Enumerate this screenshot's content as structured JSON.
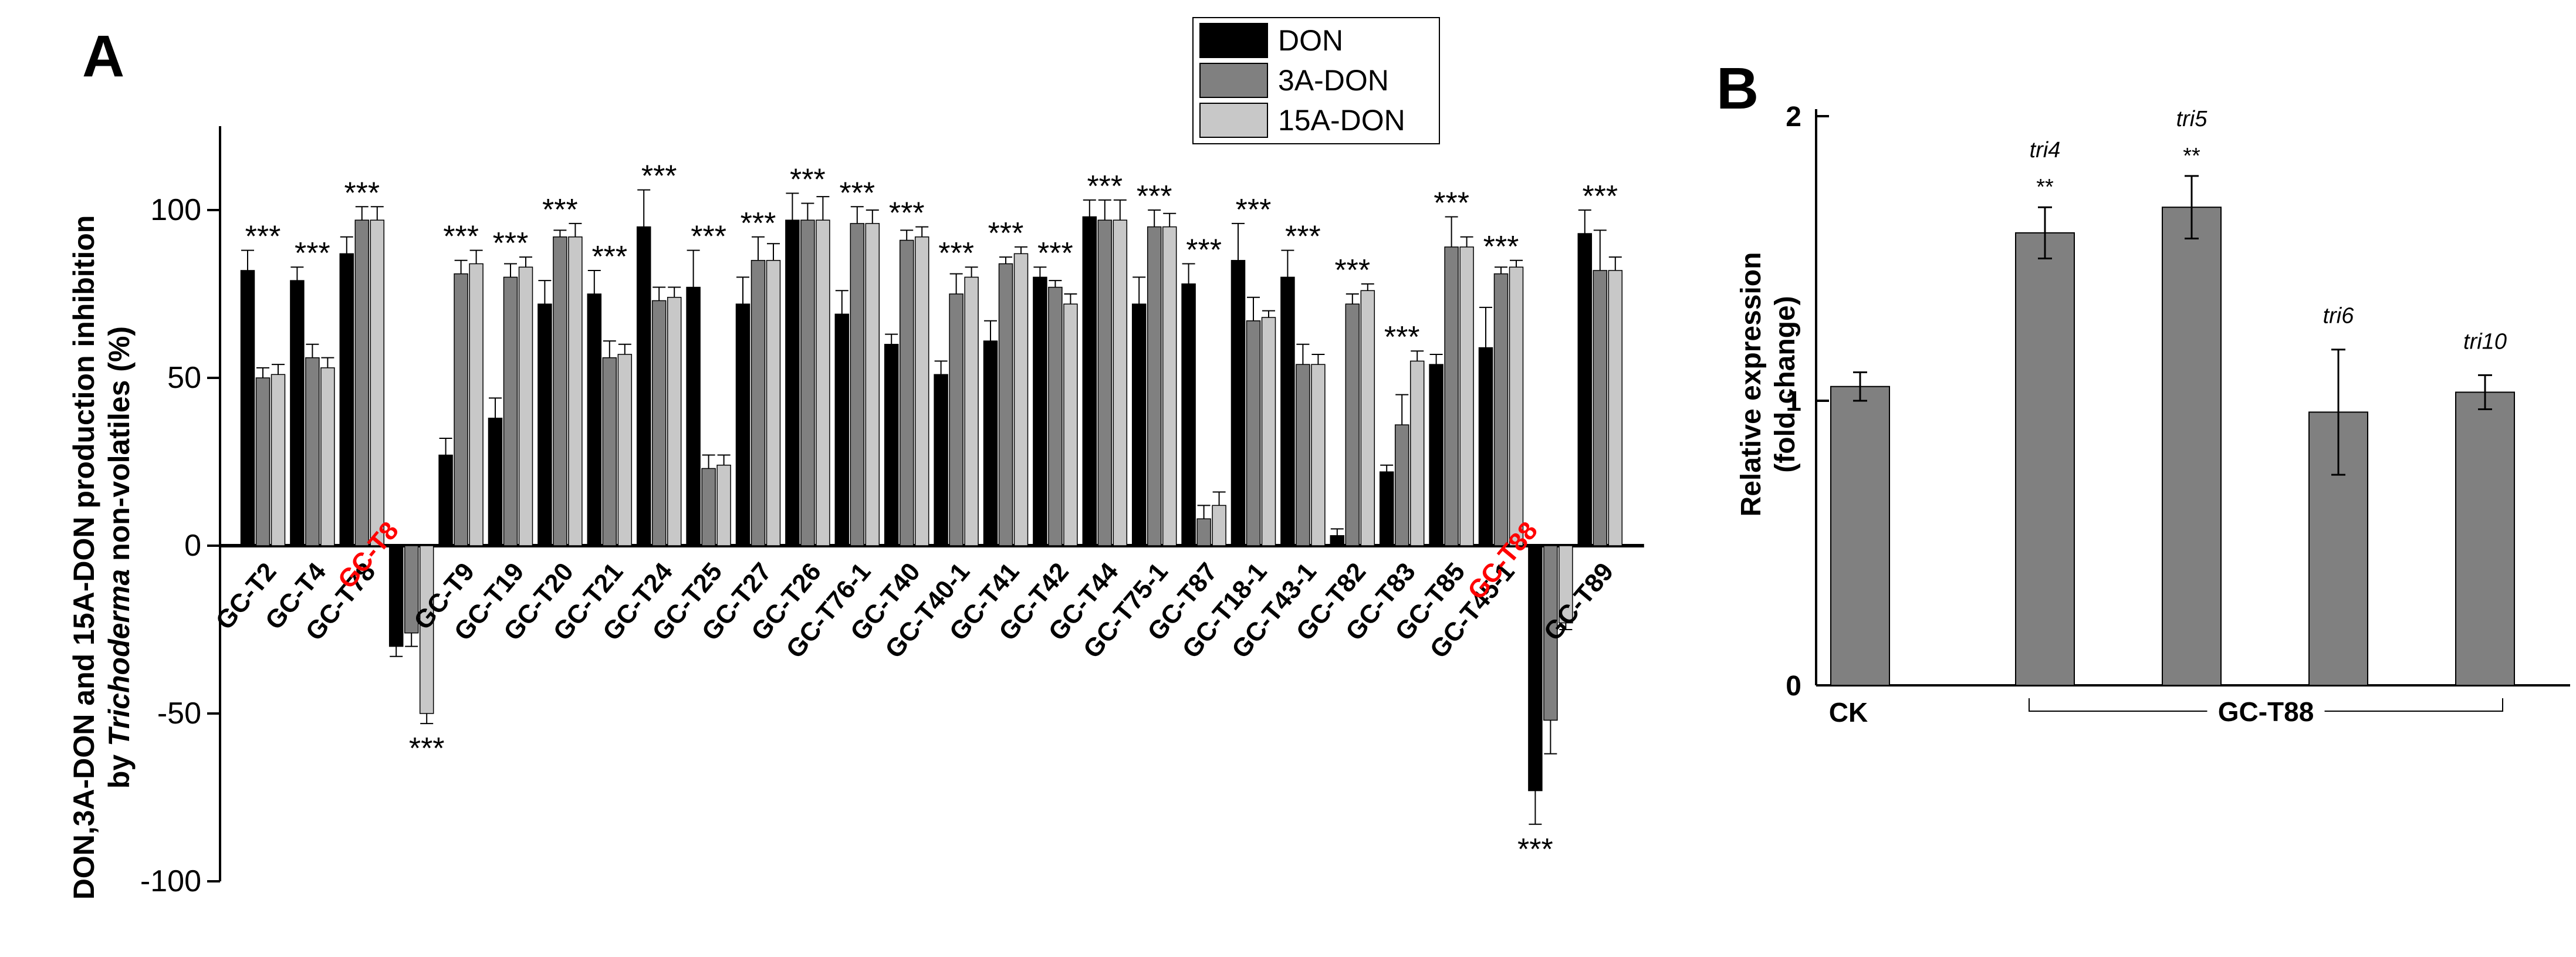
{
  "chart_data": [
    {
      "panel_label": "A",
      "type": "bar",
      "ylabel_line1": "DON,3A-DON and 15A-DON production inhibition",
      "ylabel_line2_prefix": "by ",
      "ylabel_line2_italic": "Trichoderma",
      "ylabel_line2_suffix": " non-volatiles (%)",
      "ylim": [
        -100,
        125
      ],
      "yticks": [
        -100,
        -50,
        0,
        50,
        100
      ],
      "legend": [
        "DON",
        "3A-DON",
        "15A-DON"
      ],
      "series_colors": [
        "#000000",
        "#808080",
        "#c8c8c8"
      ],
      "highlight_color": "#ff0000",
      "categories": [
        {
          "label": "GC-T2",
          "values": [
            82,
            50,
            51
          ],
          "errors": [
            6,
            3,
            3
          ],
          "annotation": "***"
        },
        {
          "label": "GC-T4",
          "values": [
            79,
            56,
            53
          ],
          "errors": [
            4,
            4,
            3
          ],
          "annotation": "***"
        },
        {
          "label": "GC-T78",
          "values": [
            87,
            97,
            97
          ],
          "errors": [
            5,
            4,
            4
          ],
          "annotation": "***"
        },
        {
          "label": "GC-T8",
          "values": [
            -30,
            -26,
            -50
          ],
          "errors": [
            3,
            4,
            3
          ],
          "annotation": "***",
          "highlight": true
        },
        {
          "label": "GC-T9",
          "values": [
            27,
            81,
            84
          ],
          "errors": [
            5,
            4,
            4
          ],
          "annotation": "***"
        },
        {
          "label": "GC-T19",
          "values": [
            38,
            80,
            83
          ],
          "errors": [
            6,
            4,
            3
          ],
          "annotation": "***"
        },
        {
          "label": "GC-T20",
          "values": [
            72,
            92,
            92
          ],
          "errors": [
            7,
            2,
            4
          ],
          "annotation": "***"
        },
        {
          "label": "GC-T21",
          "values": [
            75,
            56,
            57
          ],
          "errors": [
            7,
            5,
            3
          ],
          "annotation": "***"
        },
        {
          "label": "GC-T24",
          "values": [
            95,
            73,
            74
          ],
          "errors": [
            11,
            4,
            3
          ],
          "annotation": "***"
        },
        {
          "label": "GC-T25",
          "values": [
            77,
            23,
            24
          ],
          "errors": [
            11,
            4,
            3
          ],
          "annotation": "***"
        },
        {
          "label": "GC-T27",
          "values": [
            72,
            85,
            85
          ],
          "errors": [
            8,
            7,
            5
          ],
          "annotation": "***"
        },
        {
          "label": "GC-T26",
          "values": [
            97,
            97,
            97
          ],
          "errors": [
            8,
            5,
            7
          ],
          "annotation": "***"
        },
        {
          "label": "GC-T76-1",
          "values": [
            69,
            96,
            96
          ],
          "errors": [
            7,
            5,
            4
          ],
          "annotation": "***"
        },
        {
          "label": "GC-T40",
          "values": [
            60,
            91,
            92
          ],
          "errors": [
            3,
            3,
            3
          ],
          "annotation": "***"
        },
        {
          "label": "GC-T40-1",
          "values": [
            51,
            75,
            80
          ],
          "errors": [
            4,
            6,
            3
          ],
          "annotation": "***"
        },
        {
          "label": "GC-T41",
          "values": [
            61,
            84,
            87
          ],
          "errors": [
            6,
            2,
            2
          ],
          "annotation": "***"
        },
        {
          "label": "GC-T42",
          "values": [
            80,
            77,
            72
          ],
          "errors": [
            3,
            2,
            3
          ],
          "annotation": "***"
        },
        {
          "label": "GC-T44",
          "values": [
            98,
            97,
            97
          ],
          "errors": [
            5,
            6,
            6
          ],
          "annotation": "***"
        },
        {
          "label": "GC-T75-1",
          "values": [
            72,
            95,
            95
          ],
          "errors": [
            8,
            5,
            4
          ],
          "annotation": "***"
        },
        {
          "label": "GC-T87",
          "values": [
            78,
            8,
            12
          ],
          "errors": [
            6,
            4,
            4
          ],
          "annotation": "***"
        },
        {
          "label": "GC-T18-1",
          "values": [
            85,
            67,
            68
          ],
          "errors": [
            11,
            7,
            2
          ],
          "annotation": "***"
        },
        {
          "label": "GC-T43-1",
          "values": [
            80,
            54,
            54
          ],
          "errors": [
            8,
            6,
            3
          ],
          "annotation": "***"
        },
        {
          "label": "GC-T82",
          "values": [
            3,
            72,
            76
          ],
          "errors": [
            2,
            3,
            2
          ],
          "annotation": "***"
        },
        {
          "label": "GC-T83",
          "values": [
            22,
            36,
            55
          ],
          "errors": [
            2,
            9,
            3
          ],
          "annotation": "***"
        },
        {
          "label": "GC-T85",
          "values": [
            54,
            89,
            89
          ],
          "errors": [
            3,
            9,
            3
          ],
          "annotation": "***"
        },
        {
          "label": "GC-T45-1",
          "values": [
            59,
            81,
            83
          ],
          "errors": [
            12,
            2,
            2
          ],
          "annotation": "***"
        },
        {
          "label": "GC-T88",
          "values": [
            -73,
            -52,
            -23
          ],
          "errors": [
            10,
            10,
            2
          ],
          "annotation": "***",
          "highlight": true
        },
        {
          "label": "GC-T89",
          "values": [
            93,
            82,
            82
          ],
          "errors": [
            7,
            12,
            4
          ],
          "annotation": "***"
        }
      ]
    },
    {
      "panel_label": "B",
      "type": "bar",
      "ylabel_line1": "Relative expression",
      "ylabel_line2": "(fold change)",
      "ylim": [
        0,
        2
      ],
      "yticks": [
        0,
        1,
        2
      ],
      "bar_color": "#808080",
      "bars": [
        {
          "label": "CK",
          "gene": "",
          "value": 1.05,
          "error": 0.05,
          "significance": ""
        },
        {
          "label": "",
          "gene": "tri4",
          "value": 1.59,
          "error": 0.09,
          "significance": "**"
        },
        {
          "label": "",
          "gene": "tri5",
          "value": 1.68,
          "error": 0.11,
          "significance": "**"
        },
        {
          "label": "",
          "gene": "tri6",
          "value": 0.96,
          "error": 0.22,
          "significance": ""
        },
        {
          "label": "",
          "gene": "tri10",
          "value": 1.03,
          "error": 0.06,
          "significance": ""
        }
      ],
      "group_label": "GC-T88"
    }
  ]
}
